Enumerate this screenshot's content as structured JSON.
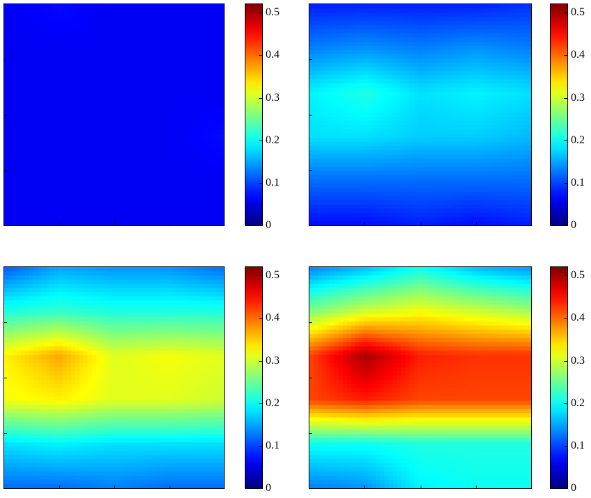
{
  "chart_data": [
    {
      "type": "heatmap",
      "panel": "top-left",
      "grid": false,
      "colormap": "jet",
      "clim": [
        0,
        0.52
      ],
      "rows": 6,
      "cols": 5,
      "values": [
        [
          0.06,
          0.07,
          0.06,
          0.06,
          0.06
        ],
        [
          0.06,
          0.06,
          0.06,
          0.06,
          0.06
        ],
        [
          0.06,
          0.06,
          0.06,
          0.06,
          0.06
        ],
        [
          0.06,
          0.06,
          0.06,
          0.06,
          0.07
        ],
        [
          0.06,
          0.06,
          0.06,
          0.06,
          0.06
        ],
        [
          0.06,
          0.06,
          0.06,
          0.06,
          0.06
        ]
      ],
      "colorbar_ticks": [
        "0",
        "0.1",
        "0.2",
        "0.3",
        "0.4",
        "0.5"
      ]
    },
    {
      "type": "heatmap",
      "panel": "top-right",
      "grid": false,
      "colormap": "jet",
      "clim": [
        0,
        0.52
      ],
      "rows": 6,
      "cols": 5,
      "values": [
        [
          0.08,
          0.08,
          0.08,
          0.08,
          0.09
        ],
        [
          0.13,
          0.14,
          0.13,
          0.14,
          0.13
        ],
        [
          0.19,
          0.21,
          0.18,
          0.19,
          0.18
        ],
        [
          0.18,
          0.18,
          0.17,
          0.17,
          0.16
        ],
        [
          0.12,
          0.12,
          0.12,
          0.12,
          0.12
        ],
        [
          0.07,
          0.07,
          0.08,
          0.07,
          0.08
        ]
      ],
      "colorbar_ticks": [
        "0",
        "0.1",
        "0.2",
        "0.3",
        "0.4",
        "0.5"
      ]
    },
    {
      "type": "heatmap",
      "panel": "bottom-left",
      "grid": false,
      "colormap": "jet",
      "clim": [
        0,
        0.52
      ],
      "rows": 6,
      "cols": 5,
      "values": [
        [
          0.11,
          0.15,
          0.14,
          0.14,
          0.12
        ],
        [
          0.21,
          0.22,
          0.21,
          0.21,
          0.21
        ],
        [
          0.33,
          0.37,
          0.31,
          0.32,
          0.31
        ],
        [
          0.32,
          0.33,
          0.31,
          0.31,
          0.3
        ],
        [
          0.18,
          0.19,
          0.18,
          0.18,
          0.18
        ],
        [
          0.12,
          0.12,
          0.13,
          0.12,
          0.12
        ]
      ],
      "colorbar_ticks": [
        "0",
        "0.1",
        "0.2",
        "0.3",
        "0.4",
        "0.5"
      ]
    },
    {
      "type": "heatmap",
      "panel": "bottom-right",
      "grid": false,
      "colormap": "jet",
      "clim": [
        0,
        0.52
      ],
      "rows": 6,
      "cols": 5,
      "values": [
        [
          0.13,
          0.16,
          0.2,
          0.16,
          0.14
        ],
        [
          0.26,
          0.3,
          0.32,
          0.3,
          0.28
        ],
        [
          0.42,
          0.5,
          0.44,
          0.43,
          0.43
        ],
        [
          0.42,
          0.44,
          0.42,
          0.42,
          0.42
        ],
        [
          0.2,
          0.2,
          0.21,
          0.21,
          0.21
        ],
        [
          0.13,
          0.14,
          0.19,
          0.2,
          0.2
        ]
      ],
      "colorbar_ticks": [
        "0",
        "0.1",
        "0.2",
        "0.3",
        "0.4",
        "0.5"
      ]
    }
  ]
}
